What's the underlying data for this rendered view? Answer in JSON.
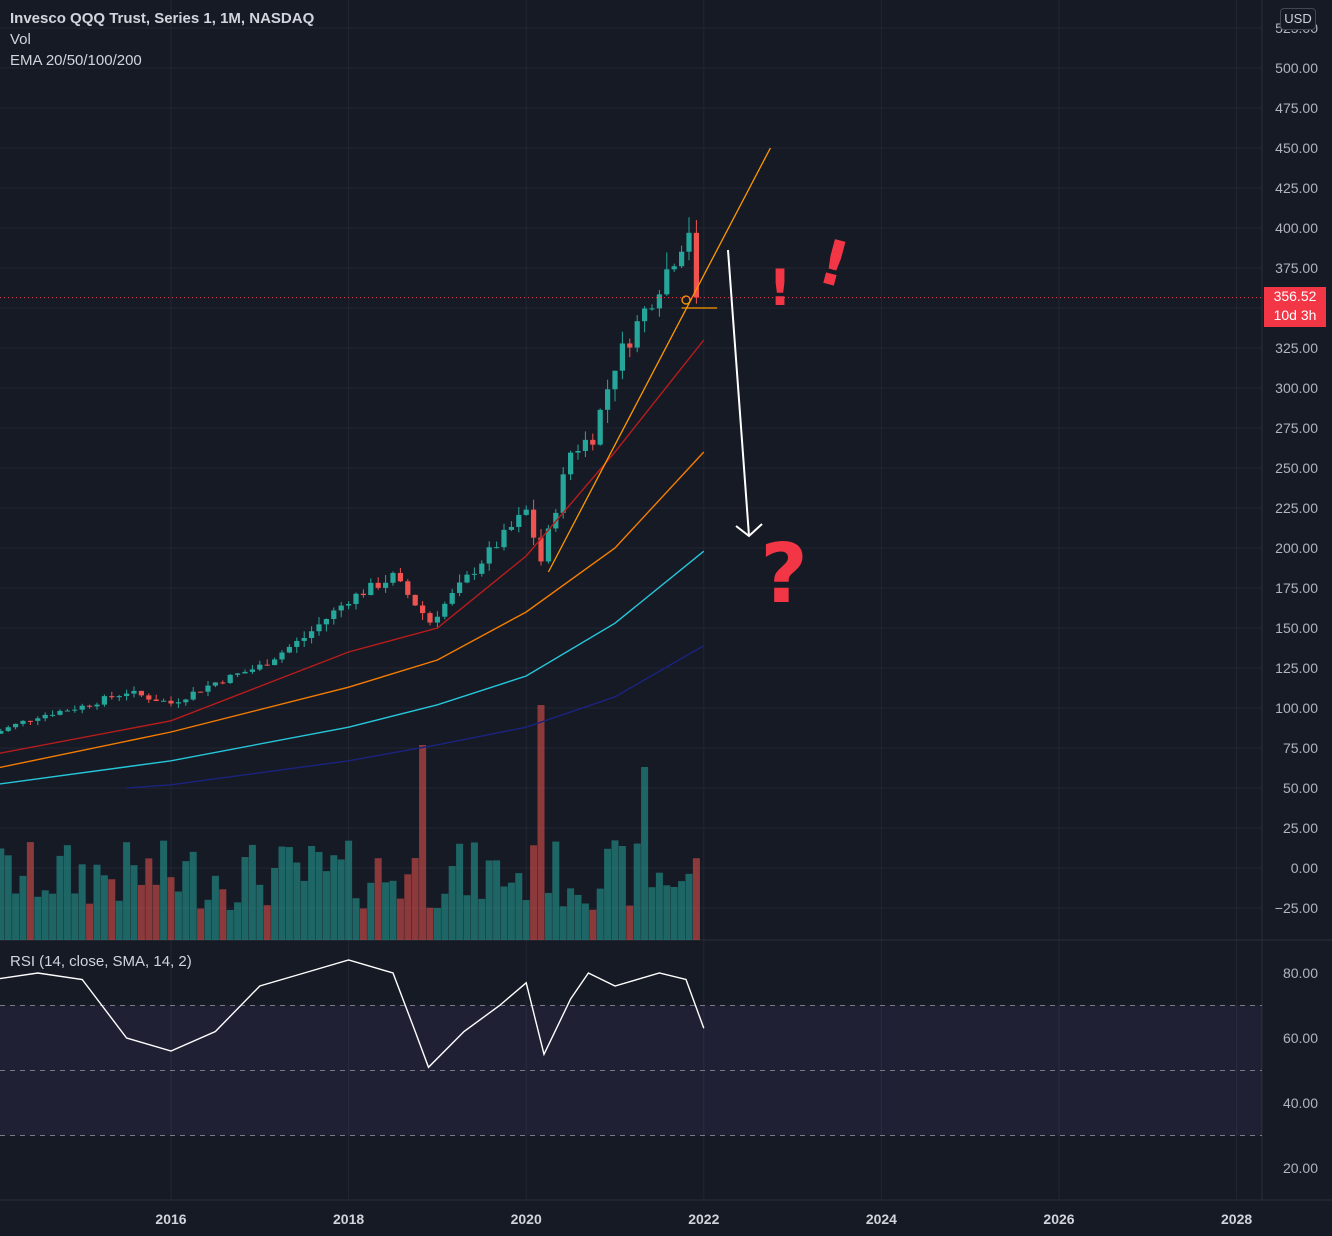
{
  "header": {
    "title": "Invesco QQQ Trust, Series 1, 1M, NASDAQ",
    "vol_label": "Vol",
    "ema_label": "EMA 20/50/100/200",
    "currency_button": "USD"
  },
  "price_tag": {
    "value": "356.52",
    "countdown": "10d 3h"
  },
  "annotations": {
    "exclaim1": "!",
    "exclaim2": "!",
    "question": "?"
  },
  "rsi_label": "RSI (14, close, SMA, 14, 2)",
  "colors": {
    "background": "#161a25",
    "up": "#26a69a",
    "down": "#ef5350",
    "ema20": "#b71c1c",
    "ema50": "#f57c00",
    "ema100": "#26c6da",
    "ema200": "#1a237e",
    "trendline": "#ff9800",
    "annotation": "#f23645",
    "rsi_line": "#ffffff",
    "rsi_band": "#7e57c2"
  },
  "chart_data": [
    {
      "type": "candlestick",
      "title": "Invesco QQQ Trust, Series 1, 1M, NASDAQ",
      "price_axis_ticks": [
        "−25.00",
        "0.00",
        "25.00",
        "50.00",
        "75.00",
        "100.00",
        "125.00",
        "150.00",
        "175.00",
        "200.00",
        "225.00",
        "250.00",
        "275.00",
        "300.00",
        "325.00",
        "350.00",
        "375.00",
        "400.00",
        "425.00",
        "450.00",
        "475.00",
        "500.00",
        "525.00"
      ],
      "time_axis_ticks": [
        "2016",
        "2018",
        "2020",
        "2022",
        "2024",
        "2026",
        "2028"
      ],
      "ylim": [
        -45,
        535
      ],
      "last_price": 356.52,
      "closes": [
        {
          "date": "2014-01",
          "value": 84
        },
        {
          "date": "2014-07",
          "value": 95
        },
        {
          "date": "2015-01",
          "value": 101
        },
        {
          "date": "2015-07",
          "value": 110
        },
        {
          "date": "2016-01",
          "value": 103
        },
        {
          "date": "2016-07",
          "value": 116
        },
        {
          "date": "2017-01",
          "value": 126
        },
        {
          "date": "2017-07",
          "value": 144
        },
        {
          "date": "2018-01",
          "value": 168
        },
        {
          "date": "2018-07",
          "value": 182
        },
        {
          "date": "2018-12",
          "value": 154
        },
        {
          "date": "2019-07",
          "value": 192
        },
        {
          "date": "2020-01",
          "value": 223
        },
        {
          "date": "2020-03",
          "value": 192
        },
        {
          "date": "2020-07",
          "value": 260
        },
        {
          "date": "2020-10",
          "value": 270
        },
        {
          "date": "2021-01",
          "value": 315
        },
        {
          "date": "2021-07",
          "value": 365
        },
        {
          "date": "2021-11",
          "value": 400
        },
        {
          "date": "2021-12",
          "value": 398
        },
        {
          "date": "2022-01",
          "value": 356.52
        }
      ],
      "ema_series": [
        {
          "name": "EMA 20",
          "points": [
            [
              2014.0,
              71
            ],
            [
              2016.0,
              92
            ],
            [
              2018.0,
              135
            ],
            [
              2019.0,
              150
            ],
            [
              2020.0,
              195
            ],
            [
              2021.0,
              260
            ],
            [
              2022.0,
              330
            ]
          ]
        },
        {
          "name": "EMA 50",
          "points": [
            [
              2014.0,
              62
            ],
            [
              2016.0,
              85
            ],
            [
              2018.0,
              113
            ],
            [
              2019.0,
              130
            ],
            [
              2020.0,
              160
            ],
            [
              2021.0,
              200
            ],
            [
              2022.0,
              260
            ]
          ]
        },
        {
          "name": "EMA 100",
          "points": [
            [
              2014.0,
              52
            ],
            [
              2016.0,
              67
            ],
            [
              2018.0,
              88
            ],
            [
              2019.0,
              102
            ],
            [
              2020.0,
              120
            ],
            [
              2021.0,
              153
            ],
            [
              2022.0,
              198
            ]
          ]
        },
        {
          "name": "EMA 200",
          "points": [
            [
              2015.5,
              50
            ],
            [
              2016.0,
              52
            ],
            [
              2018.0,
              67
            ],
            [
              2019.0,
              77
            ],
            [
              2020.0,
              88
            ],
            [
              2021.0,
              107
            ],
            [
              2022.0,
              139
            ]
          ]
        }
      ]
    },
    {
      "type": "line",
      "title": "RSI (14, close, SMA, 14, 2)",
      "ylim": [
        15,
        88
      ],
      "y_ticks": [
        "20.00",
        "40.00",
        "60.00",
        "80.00"
      ],
      "bands": [
        30,
        50,
        70
      ],
      "values": [
        {
          "x": 2014.0,
          "y": 78
        },
        {
          "x": 2014.5,
          "y": 80
        },
        {
          "x": 2015.0,
          "y": 78
        },
        {
          "x": 2015.5,
          "y": 60
        },
        {
          "x": 2016.0,
          "y": 56
        },
        {
          "x": 2016.5,
          "y": 62
        },
        {
          "x": 2017.0,
          "y": 76
        },
        {
          "x": 2017.5,
          "y": 80
        },
        {
          "x": 2018.0,
          "y": 84
        },
        {
          "x": 2018.5,
          "y": 80
        },
        {
          "x": 2018.75,
          "y": 62
        },
        {
          "x": 2018.9,
          "y": 51
        },
        {
          "x": 2019.3,
          "y": 62
        },
        {
          "x": 2019.7,
          "y": 70
        },
        {
          "x": 2020.0,
          "y": 77
        },
        {
          "x": 2020.2,
          "y": 55
        },
        {
          "x": 2020.5,
          "y": 72
        },
        {
          "x": 2020.7,
          "y": 80
        },
        {
          "x": 2021.0,
          "y": 76
        },
        {
          "x": 2021.5,
          "y": 80
        },
        {
          "x": 2021.8,
          "y": 78
        },
        {
          "x": 2022.0,
          "y": 63
        }
      ]
    }
  ]
}
